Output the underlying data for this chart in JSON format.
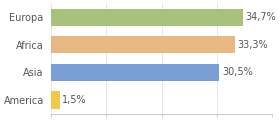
{
  "categories": [
    "America",
    "Asia",
    "Africa",
    "Europa"
  ],
  "values": [
    1.5,
    30.5,
    33.3,
    34.7
  ],
  "bar_colors": [
    "#f0c84a",
    "#7b9fd4",
    "#e8b882",
    "#a8c17c"
  ],
  "labels": [
    "1,5%",
    "30,5%",
    "33,3%",
    "34,7%"
  ],
  "xlim": [
    0,
    40
  ],
  "background_color": "#ffffff",
  "label_fontsize": 7.0,
  "tick_fontsize": 7.0
}
